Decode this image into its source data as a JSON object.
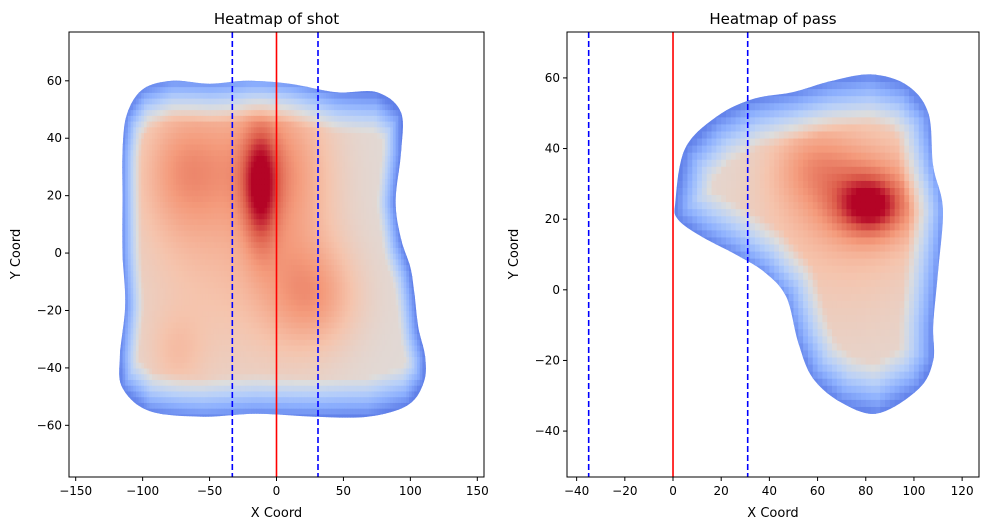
{
  "chart_data": [
    {
      "type": "heatmap",
      "title": "Heatmap of shot",
      "xlabel": "X Coord",
      "ylabel": "Y Coord",
      "xlim": [
        -155,
        155
      ],
      "ylim": [
        -78,
        77
      ],
      "xticks": [
        -150,
        -100,
        -50,
        0,
        50,
        100,
        150
      ],
      "yticks": [
        -60,
        -40,
        -20,
        0,
        20,
        40,
        60
      ],
      "xtick_labels": [
        "−150",
        "−100",
        "−50",
        "0",
        "50",
        "100",
        "150"
      ],
      "ytick_labels": [
        "−60",
        "−40",
        "−20",
        "0",
        "20",
        "40",
        "60"
      ],
      "colormap": "coolwarm",
      "density_outline": [
        [
          -112,
          48
        ],
        [
          -100,
          57
        ],
        [
          -78,
          60
        ],
        [
          -50,
          59
        ],
        [
          -22,
          60
        ],
        [
          10,
          59
        ],
        [
          45,
          56
        ],
        [
          75,
          56
        ],
        [
          93,
          49
        ],
        [
          93,
          35
        ],
        [
          89,
          18
        ],
        [
          93,
          5
        ],
        [
          100,
          -5
        ],
        [
          103,
          -14
        ],
        [
          106,
          -26
        ],
        [
          111,
          -36
        ],
        [
          110,
          -45
        ],
        [
          98,
          -53
        ],
        [
          68,
          -57
        ],
        [
          28,
          -57
        ],
        [
          -15,
          -56
        ],
        [
          -55,
          -57
        ],
        [
          -95,
          -55
        ],
        [
          -115,
          -47
        ],
        [
          -117,
          -36
        ],
        [
          -113,
          -18
        ],
        [
          -115,
          0
        ],
        [
          -115,
          20
        ],
        [
          -115,
          35
        ]
      ],
      "density_peaks": [
        {
          "x": -12,
          "y": 23,
          "sx": 9,
          "sy": 15,
          "w": 1.05
        },
        {
          "x": -10,
          "y": 32,
          "sx": 30,
          "sy": 16,
          "w": 0.55
        },
        {
          "x": -70,
          "y": 30,
          "sx": 22,
          "sy": 16,
          "w": 0.62
        },
        {
          "x": -45,
          "y": 5,
          "sx": 45,
          "sy": 35,
          "w": 0.45
        },
        {
          "x": 28,
          "y": -15,
          "sx": 24,
          "sy": 13,
          "w": 0.66
        },
        {
          "x": 10,
          "y": 15,
          "sx": 25,
          "sy": 30,
          "w": 0.4
        },
        {
          "x": -75,
          "y": -35,
          "sx": 15,
          "sy": 10,
          "w": 0.3
        }
      ],
      "vlines": [
        {
          "x": -33,
          "color": "#0000ff",
          "style": "dashed"
        },
        {
          "x": 0,
          "color": "#ff0000",
          "style": "solid"
        },
        {
          "x": 31,
          "color": "#0000ff",
          "style": "dashed"
        }
      ]
    },
    {
      "type": "heatmap",
      "title": "Heatmap of pass",
      "xlabel": "X Coord",
      "ylabel": "Y Coord",
      "xlim": [
        -44,
        127
      ],
      "ylim": [
        -53,
        73
      ],
      "xticks": [
        -40,
        -20,
        0,
        20,
        40,
        60,
        80,
        100,
        120
      ],
      "yticks": [
        -40,
        -20,
        0,
        20,
        40,
        60
      ],
      "xtick_labels": [
        "−40",
        "−20",
        "0",
        "20",
        "40",
        "60",
        "80",
        "100",
        "120"
      ],
      "ytick_labels": [
        "−40",
        "−20",
        "0",
        "20",
        "40",
        "60"
      ],
      "colormap": "coolwarm",
      "density_outline": [
        [
          1,
          25
        ],
        [
          5,
          40
        ],
        [
          18,
          49
        ],
        [
          33,
          54
        ],
        [
          50,
          56
        ],
        [
          65,
          59
        ],
        [
          82,
          61
        ],
        [
          97,
          58
        ],
        [
          106,
          50
        ],
        [
          108,
          35
        ],
        [
          112,
          23
        ],
        [
          110,
          5
        ],
        [
          108,
          -10
        ],
        [
          108,
          -20
        ],
        [
          102,
          -28
        ],
        [
          85,
          -35
        ],
        [
          70,
          -32
        ],
        [
          58,
          -25
        ],
        [
          52,
          -15
        ],
        [
          47,
          -2
        ],
        [
          38,
          5
        ],
        [
          26,
          10
        ],
        [
          12,
          15
        ],
        [
          2,
          20
        ]
      ],
      "density_peaks": [
        {
          "x": 82,
          "y": 24,
          "sx": 10,
          "sy": 6,
          "w": 1.05
        },
        {
          "x": 78,
          "y": 28,
          "sx": 22,
          "sy": 12,
          "w": 0.55
        },
        {
          "x": 58,
          "y": 36,
          "sx": 12,
          "sy": 8,
          "w": 0.4
        },
        {
          "x": 70,
          "y": 15,
          "sx": 30,
          "sy": 25,
          "w": 0.3
        }
      ],
      "vlines": [
        {
          "x": -35,
          "color": "#0000ff",
          "style": "dashed"
        },
        {
          "x": 0,
          "color": "#ff0000",
          "style": "solid"
        },
        {
          "x": 31,
          "color": "#0000ff",
          "style": "dashed"
        }
      ]
    }
  ]
}
